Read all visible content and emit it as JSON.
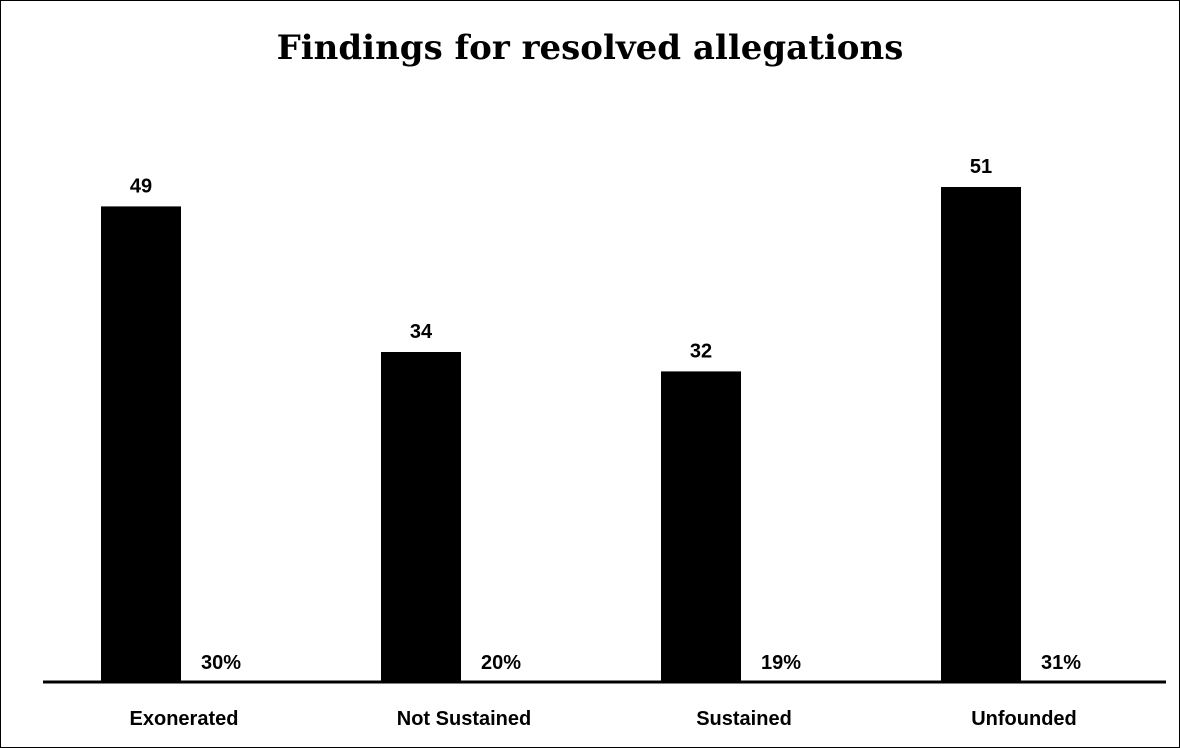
{
  "chart_data": {
    "type": "bar",
    "title": "Findings for resolved allegations",
    "categories": [
      "Exonerated",
      "Not Sustained",
      "Sustained",
      "Unfounded"
    ],
    "values": [
      49,
      34,
      32,
      51
    ],
    "percent_labels": [
      "30%",
      "20%",
      "19%",
      "31%"
    ],
    "xlabel": "",
    "ylabel": "",
    "ylim": [
      0,
      51
    ],
    "grid": false,
    "legend": "none",
    "colors": {
      "bar": "#000000",
      "axis": "#000000",
      "background": "#ffffff"
    }
  }
}
